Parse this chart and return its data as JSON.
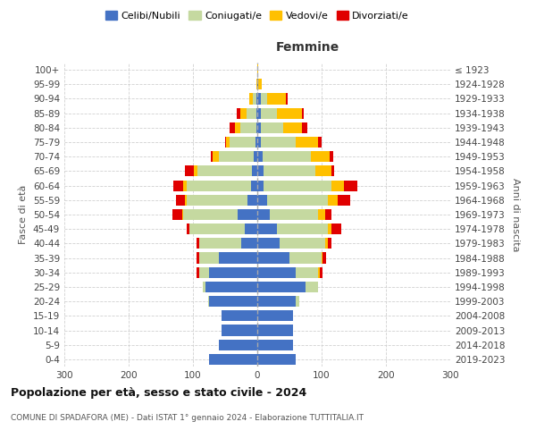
{
  "age_groups": [
    "0-4",
    "5-9",
    "10-14",
    "15-19",
    "20-24",
    "25-29",
    "30-34",
    "35-39",
    "40-44",
    "45-49",
    "50-54",
    "55-59",
    "60-64",
    "65-69",
    "70-74",
    "75-79",
    "80-84",
    "85-89",
    "90-94",
    "95-99",
    "100+"
  ],
  "birth_years": [
    "2019-2023",
    "2014-2018",
    "2009-2013",
    "2004-2008",
    "1999-2003",
    "1994-1998",
    "1989-1993",
    "1984-1988",
    "1979-1983",
    "1974-1978",
    "1969-1973",
    "1964-1968",
    "1959-1963",
    "1954-1958",
    "1949-1953",
    "1944-1948",
    "1939-1943",
    "1934-1938",
    "1929-1933",
    "1924-1928",
    "≤ 1923"
  ],
  "male_celibe": [
    75,
    60,
    55,
    55,
    75,
    80,
    75,
    60,
    25,
    20,
    30,
    15,
    10,
    8,
    5,
    3,
    2,
    2,
    2,
    0,
    0
  ],
  "male_coniugato": [
    0,
    0,
    0,
    0,
    2,
    5,
    15,
    30,
    65,
    85,
    85,
    95,
    100,
    85,
    55,
    40,
    25,
    15,
    5,
    0,
    0
  ],
  "male_vedovo": [
    0,
    0,
    0,
    0,
    0,
    0,
    0,
    0,
    0,
    0,
    2,
    2,
    5,
    5,
    10,
    5,
    8,
    10,
    5,
    2,
    0
  ],
  "male_divorziato": [
    0,
    0,
    0,
    0,
    0,
    0,
    5,
    5,
    5,
    5,
    15,
    15,
    15,
    15,
    2,
    2,
    8,
    5,
    0,
    0,
    0
  ],
  "female_celibe": [
    60,
    55,
    55,
    55,
    60,
    75,
    60,
    50,
    35,
    30,
    20,
    15,
    10,
    10,
    8,
    5,
    5,
    5,
    5,
    2,
    0
  ],
  "female_coniugato": [
    0,
    0,
    0,
    0,
    5,
    20,
    35,
    50,
    70,
    80,
    75,
    95,
    105,
    80,
    75,
    55,
    35,
    25,
    10,
    0,
    0
  ],
  "female_vedovo": [
    0,
    0,
    0,
    0,
    0,
    0,
    2,
    2,
    5,
    5,
    10,
    15,
    20,
    25,
    30,
    35,
    30,
    40,
    30,
    5,
    2
  ],
  "female_divorziato": [
    0,
    0,
    0,
    0,
    0,
    0,
    5,
    5,
    5,
    15,
    10,
    20,
    20,
    5,
    5,
    5,
    8,
    2,
    2,
    0,
    0
  ],
  "colors": {
    "celibe": "#4472c4",
    "coniugato": "#c5d9a0",
    "vedovo": "#ffc000",
    "divorziato": "#e00000"
  },
  "title": "Popolazione per età, sesso e stato civile - 2024",
  "subtitle": "COMUNE DI SPADAFORA (ME) - Dati ISTAT 1° gennaio 2024 - Elaborazione TUTTITALIA.IT",
  "xlabel_right": "Femmine",
  "ylabel_left": "Fasce di età",
  "ylabel_right": "Anni di nascita",
  "xlim": 300,
  "background_color": "#ffffff",
  "grid_color": "#cccccc"
}
